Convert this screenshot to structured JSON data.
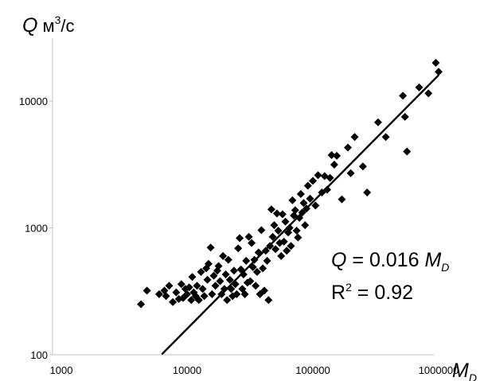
{
  "chart_data": {
    "type": "scatter",
    "x_scale": "log",
    "y_scale": "log",
    "xlim": [
      1000,
      1000000
    ],
    "ylim": [
      100,
      30000
    ],
    "x_ticks": [
      "1000",
      "10000",
      "100000",
      "1000000"
    ],
    "y_ticks": [
      "100",
      "1000",
      "10000"
    ],
    "y_axis_label": {
      "symbol": "Q",
      "unit": "м",
      "unit_sup": "3",
      "unit_tail": "/с"
    },
    "x_axis_label": {
      "symbol": "M",
      "sub": "D"
    },
    "annotation": {
      "equation_prefix": "Q",
      "equation_text": " = 0.016 ",
      "equation_var": "M",
      "equation_sub": "D",
      "r2_base": "R",
      "r2_sup": "2",
      "r2_text": " = 0.92"
    },
    "grid": false,
    "trendline": {
      "coef": 0.016,
      "exponent": 1,
      "x_range": [
        6300,
        1000000
      ]
    },
    "series": [
      {
        "marker": "diamond",
        "color": "#000000",
        "points": [
          [
            4300,
            250
          ],
          [
            4800,
            320
          ],
          [
            6000,
            300
          ],
          [
            6600,
            320
          ],
          [
            6800,
            290
          ],
          [
            7200,
            350
          ],
          [
            7700,
            260
          ],
          [
            8200,
            310
          ],
          [
            8600,
            275
          ],
          [
            9000,
            360
          ],
          [
            9300,
            280
          ],
          [
            9700,
            330
          ],
          [
            10000,
            300
          ],
          [
            10400,
            340
          ],
          [
            10800,
            270
          ],
          [
            11000,
            410
          ],
          [
            11300,
            310
          ],
          [
            11700,
            290
          ],
          [
            12000,
            350
          ],
          [
            12400,
            270
          ],
          [
            12900,
            450
          ],
          [
            13300,
            330
          ],
          [
            13700,
            290
          ],
          [
            14200,
            480
          ],
          [
            14500,
            390
          ],
          [
            14800,
            520
          ],
          [
            15400,
            700
          ],
          [
            15800,
            300
          ],
          [
            16300,
            420
          ],
          [
            16800,
            350
          ],
          [
            17400,
            460
          ],
          [
            17800,
            500
          ],
          [
            18300,
            380
          ],
          [
            18800,
            300
          ],
          [
            19300,
            600
          ],
          [
            19800,
            330
          ],
          [
            20300,
            430
          ],
          [
            20800,
            270
          ],
          [
            21300,
            560
          ],
          [
            21900,
            390
          ],
          [
            22400,
            330
          ],
          [
            23000,
            290
          ],
          [
            23600,
            460
          ],
          [
            24200,
            360
          ],
          [
            24800,
            300
          ],
          [
            25500,
            690
          ],
          [
            26200,
            830
          ],
          [
            26800,
            470
          ],
          [
            27500,
            330
          ],
          [
            28100,
            430
          ],
          [
            28800,
            300
          ],
          [
            29500,
            550
          ],
          [
            30200,
            370
          ],
          [
            31000,
            850
          ],
          [
            31800,
            380
          ],
          [
            32600,
            760
          ],
          [
            33400,
            490
          ],
          [
            34300,
            560
          ],
          [
            35100,
            350
          ],
          [
            36000,
            450
          ],
          [
            37000,
            640
          ],
          [
            38000,
            300
          ],
          [
            39000,
            960
          ],
          [
            40000,
            480
          ],
          [
            41100,
            320
          ],
          [
            42200,
            660
          ],
          [
            43300,
            550
          ],
          [
            44400,
            270
          ],
          [
            45600,
            720
          ],
          [
            46800,
            1400
          ],
          [
            48000,
            850
          ],
          [
            49300,
            1050
          ],
          [
            50500,
            680
          ],
          [
            51800,
            1300
          ],
          [
            53100,
            950
          ],
          [
            54500,
            760
          ],
          [
            56000,
            600
          ],
          [
            57400,
            1280
          ],
          [
            58900,
            780
          ],
          [
            60500,
            1120
          ],
          [
            62000,
            660
          ],
          [
            63700,
            920
          ],
          [
            65300,
            1000
          ],
          [
            67000,
            720
          ],
          [
            68800,
            1650
          ],
          [
            70600,
            1250
          ],
          [
            72400,
            1380
          ],
          [
            74300,
            950
          ],
          [
            76200,
            840
          ],
          [
            78200,
            1200
          ],
          [
            80200,
            1850
          ],
          [
            82300,
            1320
          ],
          [
            84500,
            1570
          ],
          [
            86700,
            1050
          ],
          [
            89000,
            1420
          ],
          [
            91300,
            2150
          ],
          [
            95000,
            1700
          ],
          [
            100000,
            2350
          ],
          [
            105000,
            1500
          ],
          [
            110000,
            2600
          ],
          [
            118000,
            1900
          ],
          [
            124000,
            2560
          ],
          [
            130000,
            2000
          ],
          [
            137000,
            2480
          ],
          [
            141000,
            3750
          ],
          [
            148000,
            3150
          ],
          [
            155000,
            3700
          ],
          [
            170000,
            1680
          ],
          [
            190000,
            4300
          ],
          [
            200000,
            2700
          ],
          [
            215000,
            5200
          ],
          [
            250000,
            3050
          ],
          [
            270000,
            1900
          ],
          [
            330000,
            6800
          ],
          [
            380000,
            5200
          ],
          [
            520000,
            11000
          ],
          [
            540000,
            7500
          ],
          [
            560000,
            4000
          ],
          [
            700000,
            12800
          ],
          [
            830000,
            11500
          ],
          [
            950000,
            20000
          ],
          [
            1000000,
            17000
          ]
        ]
      }
    ]
  }
}
